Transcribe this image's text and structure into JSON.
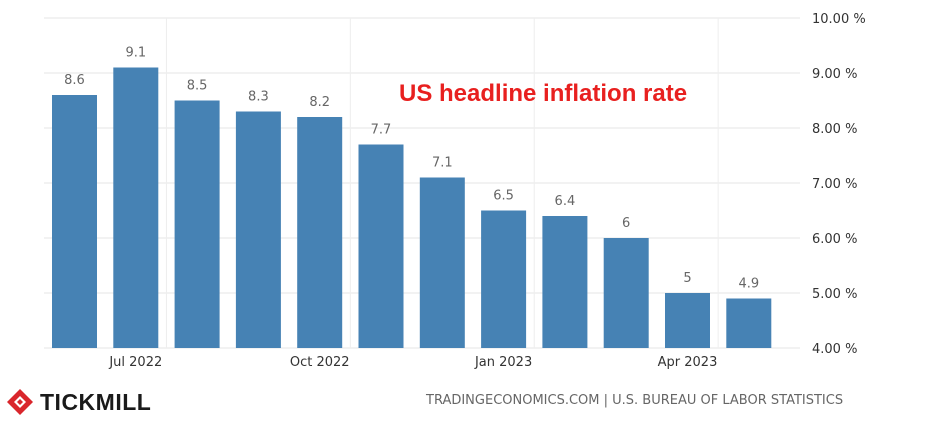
{
  "chart_data": {
    "type": "bar",
    "title": "US headline inflation rate",
    "categories": [
      "2022-06",
      "2022-07",
      "2022-08",
      "2022-09",
      "2022-10",
      "2022-11",
      "2022-12",
      "2023-01",
      "2023-02",
      "2023-03",
      "2023-04",
      "2023-05"
    ],
    "values": [
      8.6,
      9.1,
      8.5,
      8.3,
      8.2,
      7.7,
      7.1,
      6.5,
      6.4,
      6,
      5,
      4.9
    ],
    "value_labels": [
      "8.6",
      "9.1",
      "8.5",
      "8.3",
      "8.2",
      "7.7",
      "7.1",
      "6.5",
      "6.4",
      "6",
      "5",
      "4.9"
    ],
    "x_tick_labels": [
      {
        "index": 1,
        "label": "Jul 2022"
      },
      {
        "index": 4,
        "label": "Oct 2022"
      },
      {
        "index": 7,
        "label": "Jan 2023"
      },
      {
        "index": 10,
        "label": "Apr 2023"
      }
    ],
    "y_ticks": [
      4,
      5,
      6,
      7,
      8,
      9,
      10
    ],
    "y_tick_labels": [
      "4.00 %",
      "5.00 %",
      "6.00 %",
      "7.00 %",
      "8.00 %",
      "9.00 %",
      "10.00 %"
    ],
    "ylim": [
      4,
      10
    ],
    "axis_position": "right",
    "grid": true,
    "legend": false,
    "bar_color": "#4682b4",
    "xlabel": "",
    "ylabel": ""
  },
  "branding": {
    "logo_text": "TICKMILL",
    "logo_color": "#d9262c",
    "source_text": "TRADINGECONOMICS.COM | U.S. BUREAU OF LABOR STATISTICS"
  }
}
